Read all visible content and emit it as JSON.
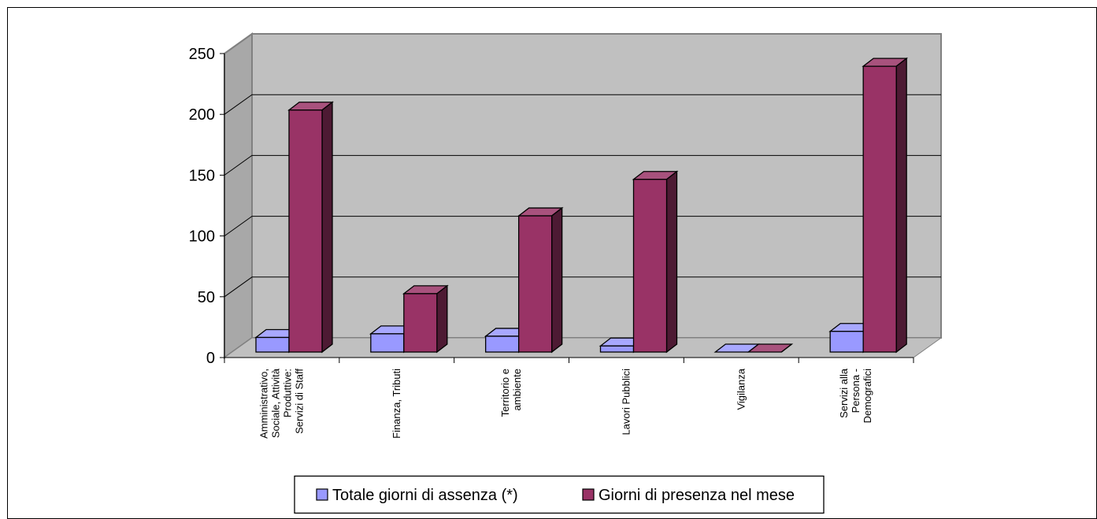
{
  "chart_data": {
    "type": "bar",
    "title": "",
    "xlabel": "",
    "ylabel": "",
    "ylim": [
      0,
      250
    ],
    "yticks": [
      0,
      50,
      100,
      150,
      200,
      250
    ],
    "grid": true,
    "legend_position": "bottom",
    "categories": [
      [
        "Amministrativo,",
        "Sociale, Attività",
        "Produttive:",
        "Servizi di Staff"
      ],
      [
        "Finanza, Tributi"
      ],
      [
        "Territorio e",
        "ambiente"
      ],
      [
        "Lavori Pubblici"
      ],
      [
        "Vigilanza"
      ],
      [
        "Servizi alla",
        "Persona -",
        "Demografici"
      ]
    ],
    "series": [
      {
        "name": "Totale giorni di assenza (*)",
        "values": [
          12,
          15,
          13,
          5,
          0,
          17
        ],
        "color": "#9999FF"
      },
      {
        "name": "Giorni di presenza nel mese",
        "values": [
          199,
          48,
          112,
          142,
          0,
          235
        ],
        "color": "#993366"
      }
    ],
    "colors": {
      "wall": "#C0C0C0",
      "floor": "#C0C0C0",
      "grid": "#000000"
    }
  }
}
